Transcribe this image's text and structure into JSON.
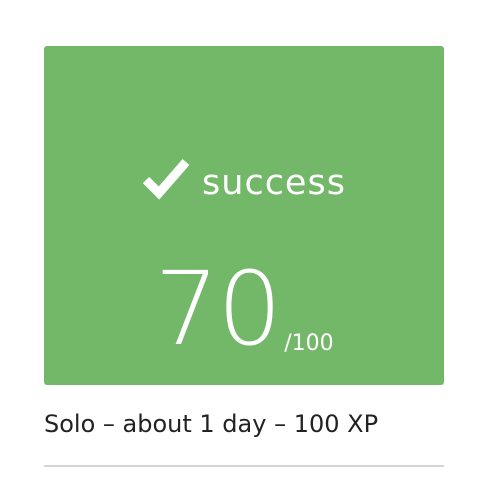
{
  "card": {
    "status_label": "success",
    "score": "70",
    "score_max": "/100",
    "background_color": "#72b868",
    "status_icon": "checkmark-icon"
  },
  "meta": {
    "text": "Solo – about 1 day – 100 XP"
  }
}
